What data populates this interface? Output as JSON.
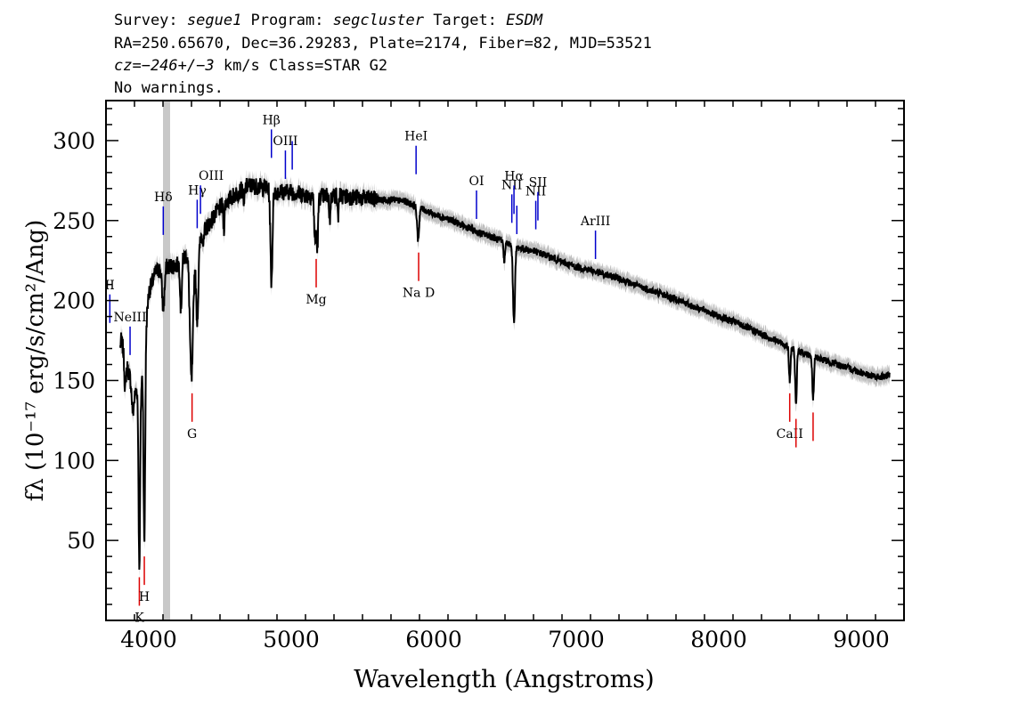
{
  "header": {
    "line1": {
      "survey_label": "Survey: ",
      "survey": "segue1",
      "program_label": " Program: ",
      "program": "segcluster",
      "target_label": " Target: ",
      "target": "ESDM"
    },
    "line2": "RA=250.65670, Dec=36.29283, Plate=2174, Fiber=82, MJD=53521",
    "line3": {
      "cz": "cz=−246+/−3",
      "rest": " km/s Class=STAR G2"
    },
    "line4": "No warnings."
  },
  "chart_data": {
    "type": "line",
    "xlabel": "Wavelength (Angstroms)",
    "ylabel": "fλ (10⁻¹⁷ erg/s/cm²/Ang)",
    "xlim": [
      3700,
      9300
    ],
    "ylim": [
      0,
      325
    ],
    "x_ticks": [
      4000,
      5000,
      6000,
      7000,
      8000,
      9000
    ],
    "y_ticks": [
      50,
      100,
      150,
      200,
      250,
      300
    ],
    "masked_band": [
      4100,
      4150
    ],
    "continuum": [
      [
        3800,
        178
      ],
      [
        3850,
        158
      ],
      [
        3900,
        142
      ],
      [
        3950,
        150
      ],
      [
        4000,
        205
      ],
      [
        4050,
        218
      ],
      [
        4100,
        221
      ],
      [
        4200,
        222
      ],
      [
        4300,
        232
      ],
      [
        4400,
        245
      ],
      [
        4500,
        258
      ],
      [
        4600,
        266
      ],
      [
        4700,
        272
      ],
      [
        4800,
        271
      ],
      [
        4900,
        268
      ],
      [
        5000,
        268
      ],
      [
        5100,
        266
      ],
      [
        5200,
        265
      ],
      [
        5300,
        266
      ],
      [
        5400,
        265
      ],
      [
        5500,
        264
      ],
      [
        5600,
        263
      ],
      [
        5700,
        263
      ],
      [
        5800,
        262
      ],
      [
        5900,
        258
      ],
      [
        6000,
        254
      ],
      [
        6100,
        251
      ],
      [
        6200,
        247
      ],
      [
        6300,
        243
      ],
      [
        6400,
        240
      ],
      [
        6500,
        236
      ],
      [
        6600,
        233
      ],
      [
        6700,
        231
      ],
      [
        6800,
        228
      ],
      [
        6900,
        224
      ],
      [
        7000,
        221
      ],
      [
        7100,
        219
      ],
      [
        7200,
        216
      ],
      [
        7300,
        214
      ],
      [
        7400,
        210
      ],
      [
        7500,
        207
      ],
      [
        7600,
        204
      ],
      [
        7700,
        201
      ],
      [
        7800,
        197
      ],
      [
        7900,
        194
      ],
      [
        8000,
        190
      ],
      [
        8100,
        187
      ],
      [
        8200,
        183
      ],
      [
        8300,
        179
      ],
      [
        8400,
        175
      ],
      [
        8500,
        171
      ],
      [
        8600,
        167
      ],
      [
        8700,
        164
      ],
      [
        8800,
        161
      ],
      [
        8900,
        158
      ],
      [
        9000,
        155
      ],
      [
        9100,
        152
      ],
      [
        9200,
        153
      ]
    ],
    "absorption_features": [
      [
        3934,
        35,
        8
      ],
      [
        3969,
        48,
        8
      ],
      [
        3889,
        130,
        10
      ],
      [
        3835,
        145,
        8
      ],
      [
        3798,
        170,
        6
      ],
      [
        4102,
        195,
        12
      ],
      [
        4226,
        195,
        8
      ],
      [
        4300,
        150,
        16
      ],
      [
        4340,
        188,
        12
      ],
      [
        4384,
        235,
        6
      ],
      [
        4527,
        245,
        6
      ],
      [
        4668,
        258,
        6
      ],
      [
        4861,
        212,
        10
      ],
      [
        5167,
        236,
        8
      ],
      [
        5183,
        234,
        8
      ],
      [
        5270,
        250,
        6
      ],
      [
        5328,
        252,
        6
      ],
      [
        5890,
        238,
        10
      ],
      [
        6495,
        224,
        6
      ],
      [
        6563,
        187,
        10
      ],
      [
        8498,
        150,
        8
      ],
      [
        8542,
        134,
        8
      ],
      [
        8662,
        138,
        8
      ]
    ],
    "emission_markers": [
      {
        "label": "II",
        "x": 3727
      },
      {
        "label": "NeIII",
        "x": 3869
      },
      {
        "label": "Hδ",
        "x": 4102
      },
      {
        "label": "Hγ",
        "x": 4340
      },
      {
        "label": "OIII",
        "x": 4363
      },
      {
        "label": "Hβ",
        "x": 4861
      },
      {
        "label": "OIII",
        "x": 4959
      },
      {
        "label": "",
        "x": 5007
      },
      {
        "label": "HeI",
        "x": 5876
      },
      {
        "label": "OI",
        "x": 6300
      },
      {
        "label": "NII",
        "x": 6548
      },
      {
        "label": "Hα",
        "x": 6563
      },
      {
        "label": "",
        "x": 6583
      },
      {
        "label": "NII",
        "x": 6716
      },
      {
        "label": "SII",
        "x": 6731
      },
      {
        "label": "ArIII",
        "x": 7135
      }
    ],
    "absorption_markers": [
      {
        "label": "K",
        "x": 3934
      },
      {
        "label": "H",
        "x": 3969
      },
      {
        "label": "G",
        "x": 4304
      },
      {
        "label": "Mg",
        "x": 5175
      },
      {
        "label": "Na D",
        "x": 5894
      },
      {
        "label": "CaII",
        "x": 8498
      },
      {
        "label": "",
        "x": 8542
      },
      {
        "label": "",
        "x": 8662
      }
    ],
    "colors": {
      "spectrum": "#000000",
      "error": "#bfbfbf",
      "emission": "#0000cc",
      "absorption": "#dd0000",
      "mask": "#c8c8c8"
    }
  }
}
